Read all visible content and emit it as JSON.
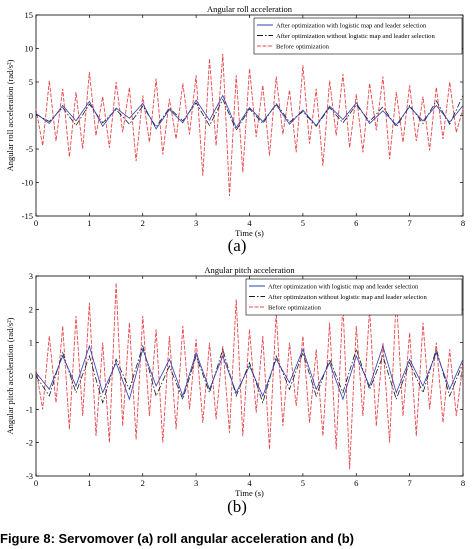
{
  "chart_data": [
    {
      "type": "line",
      "title": "Angular roll acceleration",
      "xlabel": "Time (s)",
      "ylabel": "Angular roll acceleration (rad/s²)",
      "xlim": [
        0,
        8
      ],
      "ylim": [
        -15,
        15
      ],
      "xticks": [
        "0",
        "1",
        "2",
        "3",
        "4",
        "5",
        "6",
        "7",
        "8"
      ],
      "yticks": [
        "15",
        "10",
        "5",
        "0",
        "-5",
        "-10",
        "-15"
      ],
      "legend_position": "top-right",
      "grid": false,
      "panel_label": "(a)",
      "series": [
        {
          "name": "After optimization with logistic map and leader selection",
          "color": "#2b3fb5",
          "style": "solid",
          "x": [
            0.0,
            0.25,
            0.5,
            0.75,
            1.0,
            1.25,
            1.5,
            1.75,
            2.0,
            2.25,
            2.5,
            2.75,
            3.0,
            3.25,
            3.5,
            3.75,
            4.0,
            4.25,
            4.5,
            4.75,
            5.0,
            5.25,
            5.5,
            5.75,
            6.0,
            6.25,
            6.5,
            6.75,
            7.0,
            7.25,
            7.5,
            7.75,
            8.0
          ],
          "y": [
            0.3,
            -1.2,
            1.5,
            -0.8,
            2.1,
            -1.6,
            1.1,
            -0.4,
            1.8,
            -2.0,
            0.9,
            -1.1,
            2.3,
            -0.7,
            3.0,
            -1.8,
            1.2,
            -0.9,
            1.6,
            -1.3,
            0.8,
            -1.5,
            1.4,
            -0.6,
            1.9,
            -1.2,
            0.7,
            -1.4,
            1.3,
            -0.8,
            1.5,
            -1.0,
            1.5
          ]
        },
        {
          "name": "After optimization without logistic map and leader selection",
          "color": "#1a1a1a",
          "style": "dash-dot",
          "x": [
            0.0,
            0.25,
            0.5,
            0.75,
            1.0,
            1.25,
            1.5,
            1.75,
            2.0,
            2.25,
            2.5,
            2.75,
            3.0,
            3.25,
            3.5,
            3.75,
            4.0,
            4.25,
            4.5,
            4.75,
            5.0,
            5.25,
            5.5,
            5.75,
            6.0,
            6.25,
            6.5,
            6.75,
            7.0,
            7.25,
            7.5,
            7.75,
            8.0
          ],
          "y": [
            0.2,
            -0.9,
            1.2,
            -1.5,
            1.7,
            -1.1,
            0.9,
            -1.3,
            1.4,
            -1.7,
            1.1,
            -0.8,
            1.9,
            -1.5,
            2.4,
            -2.2,
            1.0,
            -1.2,
            1.8,
            -1.0,
            0.6,
            -1.6,
            1.2,
            -1.1,
            1.6,
            -0.9,
            1.3,
            -1.7,
            1.5,
            -1.2,
            2.2,
            -1.3,
            3.0
          ]
        },
        {
          "name": "Before optimization",
          "color": "#e8474d",
          "style": "dashed",
          "x": [
            0.0,
            0.125,
            0.25,
            0.375,
            0.5,
            0.625,
            0.75,
            0.875,
            1.0,
            1.125,
            1.25,
            1.375,
            1.5,
            1.625,
            1.75,
            1.875,
            2.0,
            2.125,
            2.25,
            2.375,
            2.5,
            2.625,
            2.75,
            2.875,
            3.0,
            3.125,
            3.25,
            3.375,
            3.5,
            3.625,
            3.75,
            3.875,
            4.0,
            4.125,
            4.25,
            4.375,
            4.5,
            4.625,
            4.75,
            4.875,
            5.0,
            5.125,
            5.25,
            5.375,
            5.5,
            5.625,
            5.75,
            5.875,
            6.0,
            6.125,
            6.25,
            6.375,
            6.5,
            6.625,
            6.75,
            6.875,
            7.0,
            7.125,
            7.25,
            7.375,
            7.5,
            7.625,
            7.75,
            7.875,
            8.0
          ],
          "y": [
            1.0,
            -4.5,
            5.2,
            -3.8,
            4.0,
            -6.2,
            3.5,
            -5.0,
            6.5,
            -3.0,
            2.8,
            -4.8,
            5.0,
            -2.5,
            4.2,
            -6.8,
            3.0,
            -4.0,
            5.5,
            -5.8,
            2.5,
            -3.5,
            4.8,
            -2.8,
            6.0,
            -9.0,
            8.5,
            -4.5,
            9.2,
            -12.0,
            6.0,
            -8.5,
            7.0,
            -3.2,
            4.5,
            -6.0,
            5.8,
            -2.8,
            3.8,
            -5.5,
            7.5,
            -4.2,
            4.0,
            -7.5,
            5.2,
            -3.0,
            6.2,
            -4.8,
            3.2,
            -5.5,
            4.8,
            -2.2,
            5.8,
            -6.5,
            3.5,
            -4.0,
            4.5,
            -3.8,
            2.8,
            -5.2,
            4.2,
            -3.5,
            5.0,
            -2.5,
            1.0
          ]
        }
      ]
    },
    {
      "type": "line",
      "title": "Angular pitch acceleration",
      "xlabel": "Time (s)",
      "ylabel": "Angular pitch acceleration (rad/s²)",
      "xlim": [
        0,
        8
      ],
      "ylim": [
        -3,
        3
      ],
      "xticks": [
        "0",
        "1",
        "2",
        "3",
        "4",
        "5",
        "6",
        "7",
        "8"
      ],
      "yticks": [
        "3",
        "2",
        "1",
        "0",
        "-1",
        "-2",
        "-3"
      ],
      "legend_position": "top-right",
      "grid": false,
      "panel_label": "(b)",
      "series": [
        {
          "name": "After optimization with logistic map and leader selection",
          "color": "#2b3fb5",
          "style": "solid",
          "x": [
            0.0,
            0.25,
            0.5,
            0.75,
            1.0,
            1.25,
            1.5,
            1.75,
            2.0,
            2.25,
            2.5,
            2.75,
            3.0,
            3.25,
            3.5,
            3.75,
            4.0,
            4.25,
            4.5,
            4.75,
            5.0,
            5.25,
            5.5,
            5.75,
            6.0,
            6.25,
            6.5,
            6.75,
            7.0,
            7.25,
            7.5,
            7.75,
            8.0
          ],
          "y": [
            0.1,
            -0.4,
            0.6,
            -0.3,
            0.9,
            -0.5,
            0.4,
            -0.7,
            0.8,
            -0.3,
            0.5,
            -0.6,
            0.7,
            -0.4,
            0.6,
            -0.5,
            0.3,
            -0.6,
            0.5,
            -0.2,
            0.8,
            -0.4,
            0.4,
            -0.7,
            0.6,
            -0.3,
            0.9,
            -0.5,
            0.5,
            -0.3,
            0.7,
            -0.4,
            0.5
          ]
        },
        {
          "name": "After optimization without logistic map and leader selection",
          "color": "#1a1a1a",
          "style": "dash-dot",
          "x": [
            0.0,
            0.25,
            0.5,
            0.75,
            1.0,
            1.25,
            1.5,
            1.75,
            2.0,
            2.25,
            2.5,
            2.75,
            3.0,
            3.25,
            3.5,
            3.75,
            4.0,
            4.25,
            4.5,
            4.75,
            5.0,
            5.25,
            5.5,
            5.75,
            6.0,
            6.25,
            6.5,
            6.75,
            7.0,
            7.25,
            7.5,
            7.75,
            8.0
          ],
          "y": [
            0.0,
            -0.6,
            0.7,
            -0.5,
            0.6,
            -0.8,
            0.5,
            -0.4,
            0.9,
            -0.6,
            0.3,
            -0.7,
            0.6,
            -0.5,
            0.8,
            -0.6,
            0.4,
            -0.8,
            0.6,
            -0.4,
            0.7,
            -0.6,
            0.5,
            -0.5,
            0.8,
            -0.4,
            0.6,
            -0.7,
            0.4,
            -0.5,
            0.8,
            -0.6,
            0.4
          ]
        },
        {
          "name": "Before optimization",
          "color": "#e8474d",
          "style": "dashed",
          "x": [
            0.0,
            0.125,
            0.25,
            0.375,
            0.5,
            0.625,
            0.75,
            0.875,
            1.0,
            1.125,
            1.25,
            1.375,
            1.5,
            1.625,
            1.75,
            1.875,
            2.0,
            2.125,
            2.25,
            2.375,
            2.5,
            2.625,
            2.75,
            2.875,
            3.0,
            3.125,
            3.25,
            3.375,
            3.5,
            3.625,
            3.75,
            3.875,
            4.0,
            4.125,
            4.25,
            4.375,
            4.5,
            4.625,
            4.75,
            4.875,
            5.0,
            5.125,
            5.25,
            5.375,
            5.5,
            5.625,
            5.75,
            5.875,
            6.0,
            6.125,
            6.25,
            6.375,
            6.5,
            6.625,
            6.75,
            6.875,
            7.0,
            7.125,
            7.25,
            7.375,
            7.5,
            7.625,
            7.75,
            7.875,
            8.0
          ],
          "y": [
            0.2,
            -1.0,
            1.2,
            -0.8,
            1.5,
            -1.6,
            1.8,
            -1.2,
            2.2,
            -1.8,
            1.0,
            -2.0,
            2.8,
            -1.5,
            1.6,
            -1.9,
            1.8,
            -1.2,
            1.4,
            -2.0,
            1.2,
            -1.6,
            1.5,
            -1.0,
            1.1,
            -1.4,
            1.0,
            -1.3,
            0.9,
            -1.7,
            2.3,
            -1.8,
            1.4,
            -1.1,
            1.2,
            -2.2,
            1.9,
            -1.5,
            1.0,
            -0.9,
            1.2,
            -1.4,
            0.8,
            -1.8,
            1.6,
            -2.2,
            2.2,
            -2.8,
            1.5,
            -1.2,
            2.0,
            -1.5,
            1.0,
            -2.0,
            2.4,
            -1.2,
            1.3,
            -1.8,
            1.6,
            -1.0,
            1.0,
            -1.4,
            0.8,
            -1.2,
            0.4
          ]
        }
      ]
    }
  ],
  "caption": "Figure 8: Servomover (a) roll angular acceleration and (b)"
}
